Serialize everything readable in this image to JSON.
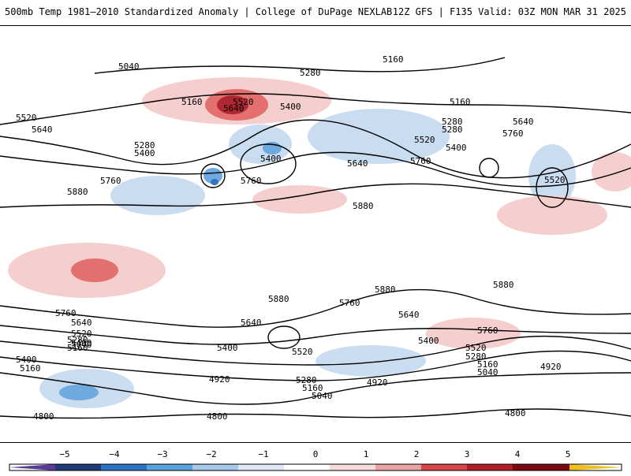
{
  "header": {
    "title_left": "500mb Temp 1981–2010 Standardized Anomaly | College of DuPage NEXLAB",
    "title_right": "12Z GFS | F135 Valid: 03Z MON MAR 31 2025"
  },
  "map": {
    "contour_labels": [
      "5040",
      "5160",
      "5280",
      "5520",
      "5640",
      "5160",
      "5520",
      "5400",
      "5280",
      "5400",
      "5640",
      "5400",
      "5280",
      "5520",
      "5760",
      "5160",
      "5640",
      "5760",
      "5280",
      "5400",
      "5520",
      "5640",
      "5760",
      "5880",
      "5760",
      "5880",
      "5880",
      "5880",
      "5880",
      "5760",
      "5760",
      "5640",
      "5640",
      "5400",
      "5520",
      "5760",
      "5640",
      "5520",
      "5400",
      "5280",
      "5160",
      "5040",
      "5400",
      "5160",
      "5520",
      "5400",
      "4920",
      "5280",
      "5160",
      "5040",
      "4920",
      "5280",
      "5160",
      "5040",
      "4920",
      "4800",
      "4800",
      "4800"
    ],
    "colors": {
      "negative_strong": "#1f66b8",
      "negative": "#5fa0dc",
      "negative_light": "#c5d9ee",
      "positive_light": "#f5c9c9",
      "positive": "#e06060",
      "positive_strong": "#a8101c"
    }
  },
  "colorbar": {
    "ticks": [
      "−5",
      "−4",
      "−3",
      "−2",
      "−1",
      "0",
      "1",
      "2",
      "3",
      "4",
      "5"
    ],
    "colors": [
      "#5a3a9a",
      "#213a78",
      "#2b74c2",
      "#5aa2de",
      "#a7c8ea",
      "#dfe8f4",
      "#ffffff",
      "#f8dcdc",
      "#e9a3a3",
      "#d6454a",
      "#b11e2a",
      "#7d0a12",
      "#f0c020"
    ]
  }
}
